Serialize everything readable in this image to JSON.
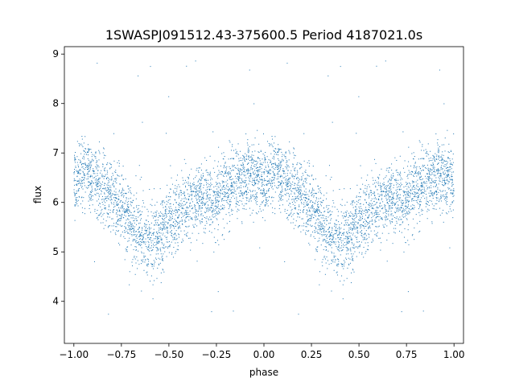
{
  "chart_data": {
    "type": "scatter",
    "title": "1SWASPJ091512.43-375600.5 Period 4187021.0s",
    "xlabel": "phase",
    "ylabel": "flux",
    "xlim": [
      -1.05,
      1.05
    ],
    "ylim": [
      3.15,
      9.15
    ],
    "xticks": [
      "−1.00",
      "−0.75",
      "−0.50",
      "−0.25",
      "0.00",
      "0.25",
      "0.50",
      "0.75",
      "1.00"
    ],
    "xtick_values": [
      -1.0,
      -0.75,
      -0.5,
      -0.25,
      0.0,
      0.25,
      0.5,
      0.75,
      1.0
    ],
    "yticks": [
      "4",
      "5",
      "6",
      "7",
      "8",
      "9"
    ],
    "ytick_values": [
      4,
      5,
      6,
      7,
      8,
      9
    ],
    "grid": false,
    "point_color": "#1f77b4",
    "series": [
      {
        "profile_phase": [
          0.0,
          0.05,
          0.1,
          0.15,
          0.2,
          0.25,
          0.3,
          0.35,
          0.4,
          0.45,
          0.5,
          0.55,
          0.6,
          0.65,
          0.7,
          0.75,
          0.8,
          0.85,
          0.9,
          0.95,
          1.0
        ],
        "profile_flux": [
          6.4,
          6.7,
          6.5,
          6.3,
          6.1,
          5.9,
          5.6,
          5.3,
          5.2,
          5.3,
          5.6,
          5.7,
          5.9,
          6.1,
          6.1,
          6.0,
          6.3,
          6.4,
          6.5,
          6.6,
          6.4
        ],
        "scatter_sigma": 0.35,
        "outlier_range": [
          3.4,
          8.9
        ]
      }
    ]
  }
}
